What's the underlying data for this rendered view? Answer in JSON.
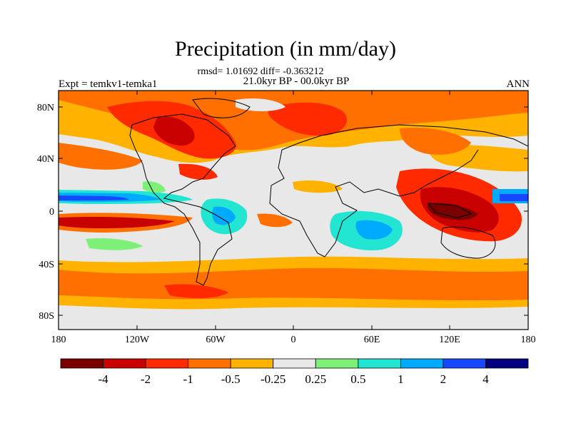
{
  "title": "Precipitation (in mm/day)",
  "stats_line": "rmsd= 1.01692 diff= -0.363212",
  "period_line": "21.0kyr BP - 00.0kyr BP",
  "experiment_label": "Expt = temkv1-temka1",
  "season_label": "ANN",
  "lat_ticks": [
    "80N",
    "40N",
    "0",
    "40S",
    "80S"
  ],
  "lon_ticks": [
    "180",
    "120W",
    "60W",
    "0",
    "60E",
    "120E",
    "180"
  ],
  "colorbar": {
    "colors": [
      "#7a0000",
      "#c80000",
      "#ff2a00",
      "#ff7000",
      "#ffb300",
      "#e8e8e8",
      "#7ef07a",
      "#22e6d2",
      "#00aaff",
      "#1648ff",
      "#000080"
    ],
    "labels": [
      "-4",
      "-2",
      "-1",
      "-0.5",
      "-0.25",
      "0.25",
      "0.5",
      "1",
      "2",
      "4"
    ]
  }
}
